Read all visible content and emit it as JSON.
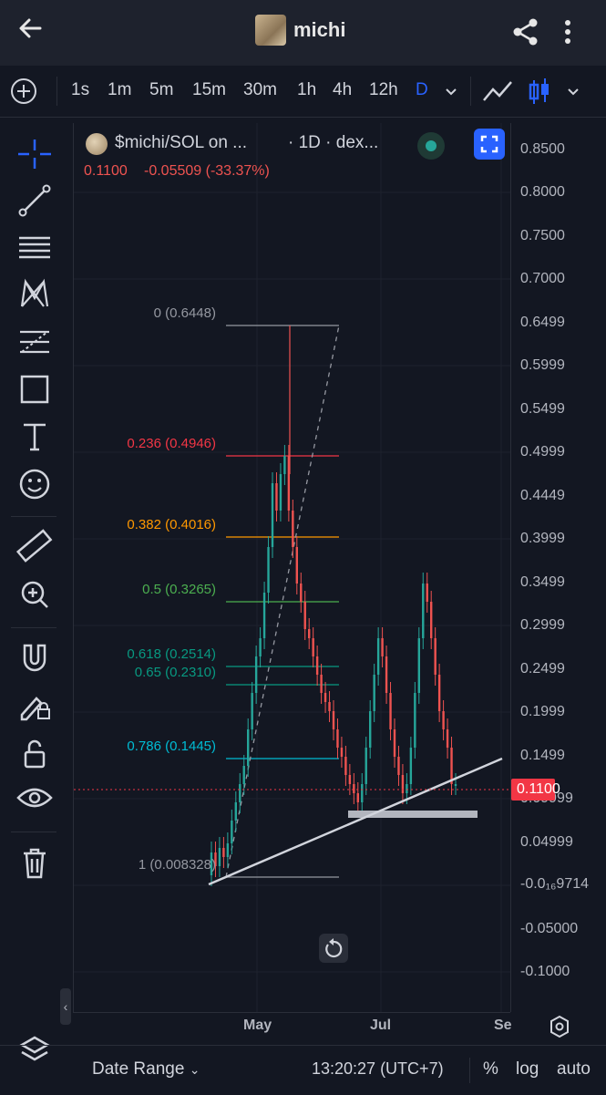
{
  "header": {
    "title": "michi"
  },
  "toolbar": {
    "intervals": [
      "1s",
      "1m",
      "5m",
      "15m",
      "30m",
      "1h",
      "4h",
      "12h",
      "D"
    ],
    "active_interval": "D"
  },
  "chart": {
    "symbol": "$michi/SOL on ...",
    "meta": "· 1D · dex...",
    "last_price": "0.1100",
    "change": "-0.05509 (-33.37%)",
    "price_tag": "0.1100",
    "price_scale": [
      "0.8500",
      "0.8000",
      "0.7500",
      "0.7000",
      "0.6499",
      "0.5999",
      "0.5499",
      "0.4999",
      "0.4449",
      "0.3999",
      "0.3499",
      "0.2999",
      "0.2499",
      "0.1999",
      "0.1499",
      "0.09999",
      "0.04999",
      "-0.0₁₆9714",
      "-0.05000",
      "-0.1000"
    ],
    "time_labels": [
      "May",
      "Jul",
      "Se"
    ],
    "fib_levels": [
      {
        "label": "0 (0.6448)",
        "color": "#9598a1"
      },
      {
        "label": "0.236 (0.4946)",
        "color": "#f23645"
      },
      {
        "label": "0.382 (0.4016)",
        "color": "#ff9800"
      },
      {
        "label": "0.5 (0.3265)",
        "color": "#4caf50"
      },
      {
        "label": "0.618 (0.2514)",
        "color": "#089981"
      },
      {
        "label": "0.65 (0.2310)",
        "color": "#089981"
      },
      {
        "label": "0.786 (0.1445)",
        "color": "#00bcd4"
      },
      {
        "label": "1 (0.008328)",
        "color": "#9598a1"
      }
    ]
  },
  "bottom": {
    "date_range": "Date Range",
    "clock": "13:20:27 (UTC+7)",
    "percent": "%",
    "log": "log",
    "auto": "auto"
  },
  "colors": {
    "accent": "#2962ff",
    "up": "#26a69a",
    "down": "#ef5350",
    "background": "#131722"
  }
}
